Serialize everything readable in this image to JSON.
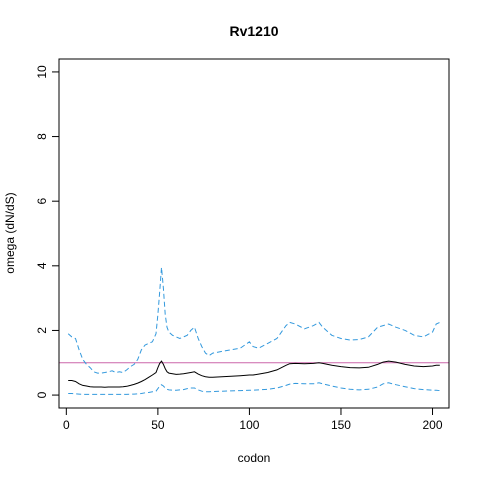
{
  "chart_data": {
    "type": "line",
    "title": "Rv1210",
    "xlabel": "codon",
    "ylabel": "omega (dN/dS)",
    "xlim": [
      -4,
      209
    ],
    "ylim": [
      -0.4,
      10.4
    ],
    "x_ticks": [
      0,
      50,
      100,
      150,
      200
    ],
    "y_ticks": [
      0,
      2,
      4,
      6,
      8,
      10
    ],
    "grid": false,
    "legend": "none",
    "reference_line": {
      "y": 1,
      "color": "#cc66aa"
    },
    "series": [
      {
        "role": "upper-bound",
        "style": "dashed",
        "color": "#3399dd",
        "x": [
          1,
          3,
          5,
          7,
          9,
          11,
          13,
          15,
          17,
          19,
          21,
          23,
          25,
          27,
          29,
          31,
          33,
          35,
          37,
          39,
          41,
          43,
          45,
          47,
          49,
          50,
          51,
          52,
          53,
          54,
          55,
          56,
          58,
          60,
          62,
          64,
          66,
          68,
          70,
          72,
          74,
          76,
          78,
          80,
          85,
          90,
          95,
          100,
          102,
          105,
          110,
          115,
          120,
          122,
          125,
          130,
          135,
          138,
          140,
          145,
          150,
          155,
          160,
          165,
          170,
          173,
          176,
          180,
          185,
          190,
          195,
          200,
          202,
          204
        ],
        "values": [
          1.9,
          1.8,
          1.75,
          1.4,
          1.1,
          0.95,
          0.85,
          0.72,
          0.68,
          0.68,
          0.7,
          0.72,
          0.75,
          0.7,
          0.72,
          0.7,
          0.78,
          0.88,
          0.95,
          1.1,
          1.4,
          1.55,
          1.6,
          1.65,
          1.9,
          2.5,
          3.2,
          3.95,
          3.3,
          2.5,
          2.1,
          1.95,
          1.85,
          1.8,
          1.75,
          1.8,
          1.85,
          2.0,
          2.1,
          1.75,
          1.5,
          1.3,
          1.22,
          1.3,
          1.35,
          1.4,
          1.45,
          1.65,
          1.5,
          1.45,
          1.6,
          1.75,
          2.15,
          2.25,
          2.2,
          2.05,
          2.15,
          2.25,
          2.1,
          1.85,
          1.75,
          1.7,
          1.72,
          1.8,
          2.1,
          2.15,
          2.2,
          2.1,
          2.0,
          1.85,
          1.8,
          1.95,
          2.2,
          2.25
        ]
      },
      {
        "role": "estimate",
        "style": "solid",
        "color": "#000000",
        "x": [
          1,
          3,
          5,
          7,
          9,
          11,
          13,
          15,
          17,
          19,
          21,
          23,
          25,
          27,
          29,
          31,
          33,
          35,
          37,
          39,
          41,
          43,
          45,
          47,
          49,
          50,
          51,
          52,
          53,
          54,
          55,
          56,
          58,
          60,
          62,
          64,
          66,
          68,
          70,
          72,
          74,
          76,
          78,
          80,
          85,
          90,
          95,
          100,
          102,
          105,
          110,
          115,
          120,
          122,
          125,
          130,
          135,
          138,
          140,
          145,
          150,
          155,
          160,
          165,
          170,
          173,
          176,
          180,
          185,
          190,
          195,
          200,
          202,
          204
        ],
        "values": [
          0.45,
          0.45,
          0.42,
          0.35,
          0.3,
          0.28,
          0.26,
          0.25,
          0.25,
          0.25,
          0.24,
          0.25,
          0.25,
          0.25,
          0.25,
          0.26,
          0.27,
          0.3,
          0.33,
          0.37,
          0.42,
          0.48,
          0.55,
          0.62,
          0.7,
          0.85,
          0.98,
          1.05,
          0.95,
          0.82,
          0.72,
          0.68,
          0.66,
          0.64,
          0.65,
          0.66,
          0.68,
          0.7,
          0.72,
          0.65,
          0.6,
          0.57,
          0.55,
          0.55,
          0.57,
          0.58,
          0.6,
          0.62,
          0.62,
          0.65,
          0.7,
          0.78,
          0.92,
          0.97,
          0.98,
          0.97,
          0.98,
          1.0,
          0.98,
          0.92,
          0.88,
          0.85,
          0.84,
          0.86,
          0.95,
          1.02,
          1.05,
          1.02,
          0.95,
          0.9,
          0.88,
          0.9,
          0.92,
          0.92
        ]
      },
      {
        "role": "lower-bound",
        "style": "dashed",
        "color": "#3399dd",
        "x": [
          1,
          3,
          5,
          7,
          9,
          11,
          13,
          15,
          17,
          19,
          21,
          23,
          25,
          27,
          29,
          31,
          33,
          35,
          37,
          39,
          41,
          43,
          45,
          47,
          49,
          50,
          51,
          52,
          53,
          54,
          55,
          56,
          58,
          60,
          62,
          64,
          66,
          68,
          70,
          72,
          74,
          76,
          78,
          80,
          85,
          90,
          95,
          100,
          102,
          105,
          110,
          115,
          120,
          122,
          125,
          130,
          135,
          138,
          140,
          145,
          150,
          155,
          160,
          165,
          170,
          173,
          176,
          180,
          185,
          190,
          195,
          200,
          202,
          204
        ],
        "values": [
          0.05,
          0.05,
          0.04,
          0.03,
          0.02,
          0.02,
          0.02,
          0.02,
          0.02,
          0.02,
          0.02,
          0.02,
          0.02,
          0.02,
          0.02,
          0.02,
          0.02,
          0.03,
          0.03,
          0.04,
          0.05,
          0.07,
          0.08,
          0.1,
          0.12,
          0.2,
          0.28,
          0.32,
          0.28,
          0.22,
          0.18,
          0.16,
          0.15,
          0.15,
          0.16,
          0.17,
          0.2,
          0.22,
          0.22,
          0.16,
          0.12,
          0.1,
          0.1,
          0.11,
          0.12,
          0.13,
          0.14,
          0.15,
          0.15,
          0.16,
          0.18,
          0.22,
          0.3,
          0.34,
          0.36,
          0.35,
          0.35,
          0.38,
          0.35,
          0.28,
          0.22,
          0.18,
          0.16,
          0.18,
          0.25,
          0.35,
          0.38,
          0.32,
          0.26,
          0.2,
          0.17,
          0.15,
          0.15,
          0.14
        ]
      }
    ]
  }
}
